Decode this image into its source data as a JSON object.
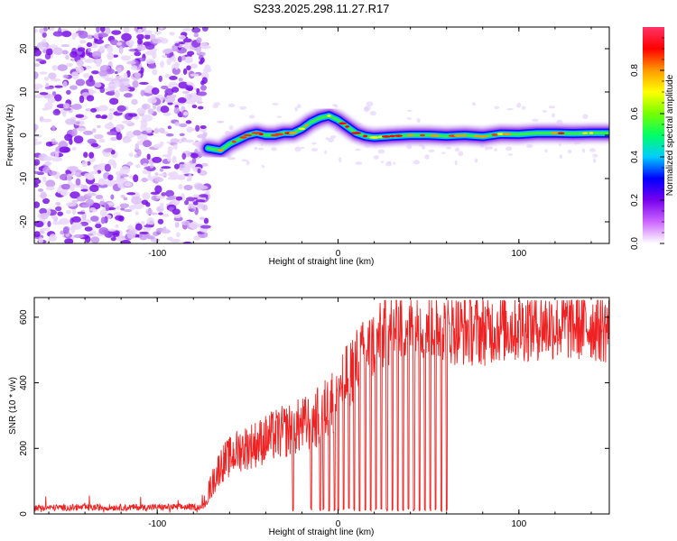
{
  "title": "S233.2025.298.11.27.R17",
  "chart_data": [
    {
      "type": "heatmap",
      "name": "spectrogram",
      "xlabel": "Height of straight line (km)",
      "ylabel": "Frequency (Hz)",
      "xlim": [
        -168,
        150
      ],
      "ylim": [
        -25,
        25
      ],
      "xticks": [
        -100,
        0,
        100
      ],
      "yticks": [
        -20,
        -10,
        0,
        10,
        20
      ],
      "noise_region_x": [
        -168,
        -72
      ],
      "ridge": {
        "x": [
          -72,
          -65,
          -60,
          -55,
          -50,
          -45,
          -40,
          -35,
          -30,
          -25,
          -20,
          -15,
          -10,
          -5,
          0,
          5,
          10,
          15,
          20,
          30,
          40,
          50,
          60,
          70,
          80,
          90,
          100,
          110,
          120,
          130,
          140,
          150
        ],
        "freq": [
          -3,
          -3.5,
          -2,
          -1,
          0,
          0.5,
          0,
          0,
          0.5,
          0.5,
          1.5,
          3,
          4,
          4.5,
          3.5,
          2,
          0.5,
          -0.2,
          -0.5,
          -0.2,
          0,
          0,
          -0.2,
          0,
          -0.3,
          0.3,
          0.2,
          0.5,
          0.5,
          0.4,
          0.5,
          0.5
        ]
      },
      "colorbar": {
        "label": "Normalized spectral amplitude",
        "ticks": [
          "0.0",
          "0.2",
          "0.4",
          "0.6",
          "0.8"
        ],
        "tick_values": [
          0,
          0.2,
          0.4,
          0.6,
          0.8
        ],
        "range": [
          0,
          1
        ],
        "colors": [
          "#ffffff",
          "#cc66ff",
          "#7700ee",
          "#0000ff",
          "#00ccff",
          "#00ff66",
          "#77ff00",
          "#ffff00",
          "#ff9900",
          "#ff0000",
          "#ff3366"
        ]
      }
    },
    {
      "type": "line",
      "name": "snr",
      "xlabel": "Height of straight line (km)",
      "ylabel": "SNR (10 * v/v)",
      "xlim": [
        -168,
        150
      ],
      "ylim": [
        0,
        660
      ],
      "xticks": [
        -100,
        0,
        100
      ],
      "yticks": [
        0,
        200,
        400,
        600
      ],
      "color": "#ee2222",
      "envelope": {
        "x": [
          -168,
          -120,
          -75,
          -65,
          -55,
          -45,
          -35,
          -25,
          -15,
          -10,
          -5,
          0,
          5,
          10,
          15,
          20,
          25,
          30,
          35,
          40,
          50,
          60,
          70,
          80,
          90,
          100,
          110,
          120,
          130,
          140,
          150
        ],
        "y": [
          20,
          22,
          24,
          150,
          195,
          215,
          240,
          260,
          280,
          300,
          330,
          380,
          420,
          460,
          490,
          520,
          545,
          565,
          575,
          580,
          580,
          565,
          560,
          560,
          570,
          570,
          575,
          575,
          575,
          575,
          565
        ]
      },
      "dropouts_x": [
        -25,
        -15,
        -10,
        -8,
        -5,
        -2,
        0,
        3,
        6,
        9,
        12,
        15,
        18,
        21,
        24,
        27,
        30,
        33,
        36,
        39,
        42,
        45,
        48,
        51,
        54,
        57,
        60
      ]
    }
  ]
}
